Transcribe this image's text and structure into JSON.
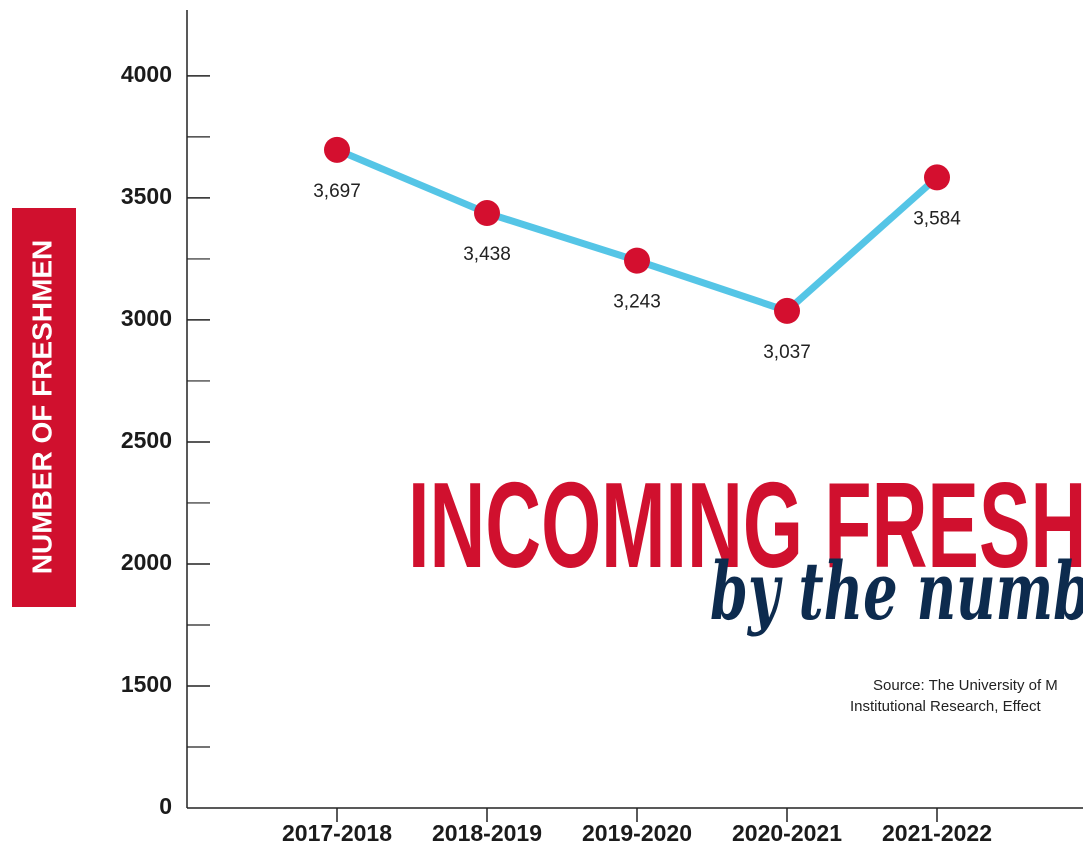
{
  "chart_data": {
    "type": "line",
    "title": "INCOMING FRESHMEN",
    "subtitle": "by the numbers",
    "source": [
      "Source: The University of M",
      "Institutional Research, Effect"
    ],
    "y_label": "NUMBER OF FRESHMEN",
    "categories": [
      "2017-2018",
      "2018-2019",
      "2019-2020",
      "2020-2021",
      "2021-2022"
    ],
    "series": [
      {
        "name": "Freshmen",
        "color": "#55c5e6",
        "marker_color": "#d40f2f",
        "values": [
          3697,
          3438,
          3243,
          3037,
          3584
        ],
        "value_labels": [
          "3,697",
          "3,438",
          "3,243",
          "3,037",
          "3,584"
        ]
      }
    ],
    "ylim": [
      0,
      4270
    ],
    "ybreak": [
      0,
      1000
    ],
    "yticks": [
      0,
      1500,
      2000,
      2500,
      3000,
      3500,
      4000
    ],
    "yminor_ticks": [
      1250,
      1750,
      2250,
      2750,
      3250,
      3750
    ]
  }
}
